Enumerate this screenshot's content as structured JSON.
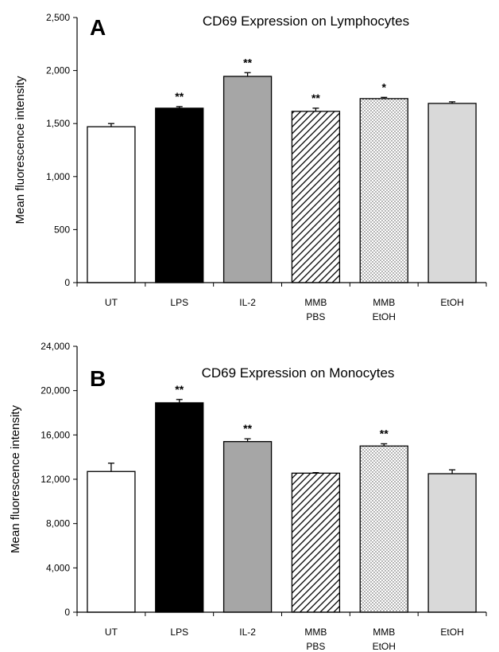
{
  "chart_data": [
    {
      "type": "bar",
      "panel_label": "A",
      "title": "CD69 Expression on Lymphocytes",
      "ylabel": "Mean fluorescence intensity",
      "xlabel": "",
      "ylim": [
        0,
        2500
      ],
      "yticks": [
        0,
        500,
        1000,
        1500,
        2000,
        2500
      ],
      "ytick_labels": [
        "0",
        "500",
        "1,000",
        "1,500",
        "2,000",
        "2,500"
      ],
      "categories": [
        [
          "UT"
        ],
        [
          "LPS"
        ],
        [
          "IL-2"
        ],
        [
          "MMB",
          "PBS"
        ],
        [
          "MMB",
          "EtOH"
        ],
        [
          "EtOH"
        ]
      ],
      "values": [
        1470,
        1645,
        1945,
        1615,
        1735,
        1690
      ],
      "errors": [
        30,
        15,
        35,
        30,
        12,
        15
      ],
      "significance": [
        "",
        "**",
        "**",
        "**",
        "*",
        ""
      ],
      "fills": [
        "white",
        "black",
        "gray",
        "diagonal-hatch",
        "dotted",
        "lightgray"
      ],
      "grid": false
    },
    {
      "type": "bar",
      "panel_label": "B",
      "title": "CD69 Expression on Monocytes",
      "ylabel": "Mean fluorescence intensity",
      "xlabel": "",
      "ylim": [
        0,
        24000
      ],
      "yticks": [
        0,
        4000,
        8000,
        12000,
        16000,
        20000,
        24000
      ],
      "ytick_labels": [
        "0",
        "4,000",
        "8,000",
        "12,000",
        "16,000",
        "20,000",
        "24,000"
      ],
      "categories": [
        [
          "UT"
        ],
        [
          "LPS"
        ],
        [
          "IL-2"
        ],
        [
          "MMB",
          "PBS"
        ],
        [
          "MMB",
          "EtOH"
        ],
        [
          "EtOH"
        ]
      ],
      "values": [
        12700,
        18900,
        15400,
        12550,
        15000,
        12500
      ],
      "errors": [
        750,
        300,
        250,
        50,
        200,
        350
      ],
      "significance": [
        "",
        "**",
        "**",
        "",
        "**",
        ""
      ],
      "fills": [
        "white",
        "black",
        "gray",
        "diagonal-hatch",
        "dotted",
        "lightgray"
      ],
      "grid": false
    }
  ]
}
